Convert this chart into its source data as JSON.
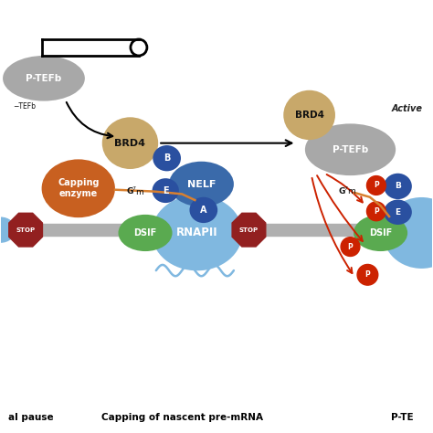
{
  "background_color": "#ffffff",
  "labels": {
    "bottom_left": "al pause",
    "bottom_center": "Capping of nascent pre-mRNA",
    "bottom_right": "P-TE"
  },
  "colors": {
    "gray_oval": "#a8a8a8",
    "brd4": "#c8a86a",
    "nelf_main": "#3a6aaa",
    "nelf_sub": "#2a50a0",
    "rnapii": "#80b8e0",
    "dsif": "#5aaa50",
    "stop": "#922020",
    "capping": "#c86020",
    "red_arrow": "#cc2200",
    "dna_line": "#b0b0b0",
    "orange_line": "#d88030",
    "p_circle": "#cc2200",
    "black": "#111111"
  },
  "figsize": [
    4.74,
    4.74
  ],
  "dpi": 100
}
